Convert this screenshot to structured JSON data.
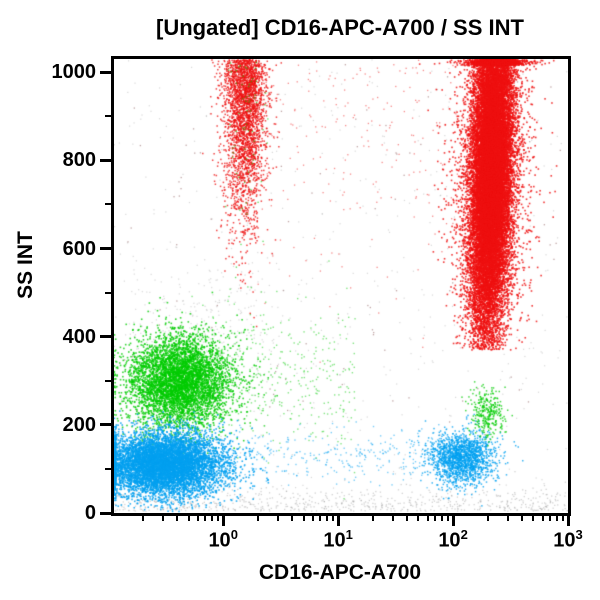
{
  "chart_data": {
    "type": "scatter",
    "title": "[Ungated] CD16-APC-A700 / SS INT",
    "xlabel": "CD16-APC-A700",
    "ylabel": "SS INT",
    "x_scale": "log10",
    "x_range_log": [
      -0.95,
      3.0
    ],
    "y_range": [
      0,
      1030
    ],
    "grid": false,
    "legend": false,
    "x_major_ticks": [
      {
        "log": 0,
        "base": "10",
        "exp": "0"
      },
      {
        "log": 1,
        "base": "10",
        "exp": "1"
      },
      {
        "log": 2,
        "base": "10",
        "exp": "2"
      },
      {
        "log": 3,
        "base": "10",
        "exp": "3"
      }
    ],
    "y_major_ticks": [
      {
        "value": 0,
        "label": "0"
      },
      {
        "value": 200,
        "label": "200"
      },
      {
        "value": 400,
        "label": "400"
      },
      {
        "value": 600,
        "label": "600"
      },
      {
        "value": 800,
        "label": "800"
      },
      {
        "value": 1000,
        "label": "1000"
      }
    ],
    "y_minor_ticks": [
      100,
      300,
      500,
      700,
      900
    ],
    "colors": {
      "red": "#EE1111",
      "green": "#00CC00",
      "blue": "#00A0F0",
      "gray": "#9A9A9A",
      "light_gray": "#AAAAAA",
      "maroon": "#8B5A5A",
      "axis": "#000000",
      "background": "#FFFFFF"
    },
    "populations": [
      {
        "name": "debris-bottom-band",
        "type": "bottomband",
        "x0": -0.95,
        "x1": 3.0,
        "y0": 4,
        "ys": 26,
        "n": 650,
        "seed": 11,
        "color": "gray",
        "alpha": 0.45,
        "size": 1.3
      },
      {
        "name": "debris-scatter",
        "type": "uniform",
        "x0": -0.95,
        "x1": 3.0,
        "y0": 2,
        "y1": 1028,
        "n": 520,
        "seed": 12,
        "color": "gray",
        "alpha": 0.4,
        "size": 1.2
      },
      {
        "name": "dark-speckles",
        "type": "uniform",
        "x0": -0.9,
        "x1": 2.95,
        "y0": 150,
        "y1": 1028,
        "n": 110,
        "seed": 13,
        "color": "maroon",
        "alpha": 0.55,
        "size": 1.3
      },
      {
        "name": "gray-haze-left",
        "type": "gauss",
        "cx": -0.15,
        "sx": 0.38,
        "cy": 430,
        "sy": 75,
        "n": 260,
        "seed": 14,
        "color": "light_gray",
        "alpha": 0.4,
        "size": 1.3
      },
      {
        "name": "green-spray-right",
        "type": "xband",
        "x0": -0.3,
        "x1": 1.15,
        "cy": 310,
        "sy": 80,
        "n": 420,
        "seed": 15,
        "color": "green",
        "alpha": 0.5,
        "size": 1.4
      },
      {
        "name": "blue-bridge",
        "type": "xband",
        "x0": 0.0,
        "x1": 1.95,
        "cy": 130,
        "sy": 30,
        "n": 300,
        "seed": 16,
        "color": "blue",
        "alpha": 0.55,
        "size": 1.4
      },
      {
        "name": "lymphocytes-green-left",
        "type": "gauss",
        "cx": -0.38,
        "sx": 0.22,
        "cy": 300,
        "sy": 52,
        "n": 5200,
        "seed": 17,
        "color": "green",
        "alpha": 0.8,
        "size": 1.6,
        "pile_left": true
      },
      {
        "name": "cells-blue-left",
        "type": "gauss",
        "cx": -0.52,
        "sx": 0.27,
        "cy": 110,
        "sy": 36,
        "n": 7500,
        "seed": 18,
        "color": "blue",
        "alpha": 0.85,
        "size": 1.6,
        "pile_left": true
      },
      {
        "name": "cells-blue-right",
        "type": "gauss",
        "cx": 2.08,
        "sx": 0.14,
        "cy": 125,
        "sy": 30,
        "n": 1700,
        "seed": 19,
        "color": "blue",
        "alpha": 0.8,
        "size": 1.5
      },
      {
        "name": "cells-green-right",
        "type": "gauss",
        "cx": 2.3,
        "sx": 0.07,
        "cy": 228,
        "sy": 27,
        "n": 300,
        "seed": 20,
        "color": "green",
        "alpha": 0.75,
        "size": 1.5
      },
      {
        "name": "red-sparse-mid",
        "type": "xuniform_top",
        "x0": 0.3,
        "x1": 2.05,
        "ytop": 1028,
        "ys": 260,
        "n": 210,
        "seed": 21,
        "color": "red",
        "alpha": 0.5,
        "size": 1.3
      },
      {
        "name": "red-streak-left",
        "type": "topstreak",
        "cx": 0.19,
        "sx": 0.095,
        "ytop": 1028,
        "ys": 175,
        "n": 2800,
        "seed": 22,
        "color": "red",
        "alpha": 0.8,
        "size": 1.5
      },
      {
        "name": "green-specks-in-left-streak",
        "type": "topstreak",
        "cx": 0.19,
        "sx": 0.09,
        "ytop": 1028,
        "ys": 230,
        "n": 70,
        "seed": 23,
        "color": "green",
        "alpha": 0.6,
        "size": 1.4
      },
      {
        "name": "neutrophils-red-main",
        "type": "redmain",
        "cx": 2.335,
        "sx": 0.085,
        "fringe_frac": 0.14,
        "fringe_sx": 0.16,
        "cy": 780,
        "sy": 190,
        "tilt": 0.00012,
        "ymin": 370,
        "n": 26000,
        "seed": 24,
        "color": "red",
        "alpha": 0.85,
        "size": 1.6,
        "clamp_top": true
      }
    ]
  }
}
